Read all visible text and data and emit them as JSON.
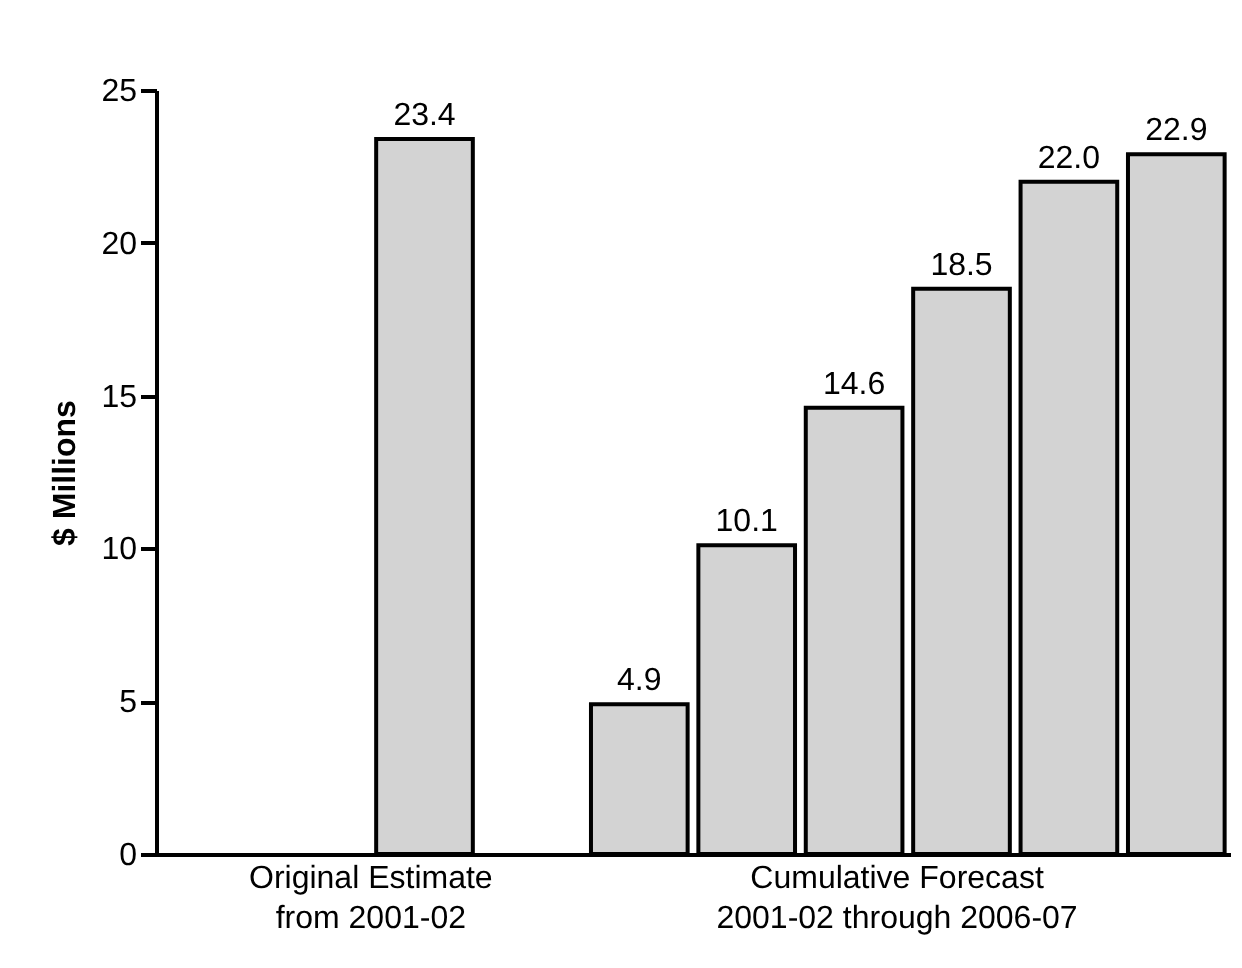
{
  "chart_data": {
    "type": "bar",
    "ylabel": "$ Millions",
    "categories": [
      null,
      null,
      null,
      null,
      null,
      null,
      null,
      null,
      null,
      null
    ],
    "values": [
      null,
      null,
      23.4,
      null,
      4.9,
      10.1,
      14.6,
      18.5,
      22.0,
      22.9
    ],
    "color": "#d3d3d3",
    "ylim": [
      0,
      25
    ],
    "yticks": [
      0,
      5,
      10,
      15,
      20,
      25
    ],
    "grid": false,
    "value_labels": [
      null,
      null,
      "23.4",
      null,
      "4.9",
      "10.1",
      "14.6",
      "18.5",
      "22.0",
      "22.9"
    ],
    "annotations": [
      "Original Estimate\nfrom 2001-02",
      "Cumulative Forecast\n2001-02 through 2006-07"
    ]
  }
}
